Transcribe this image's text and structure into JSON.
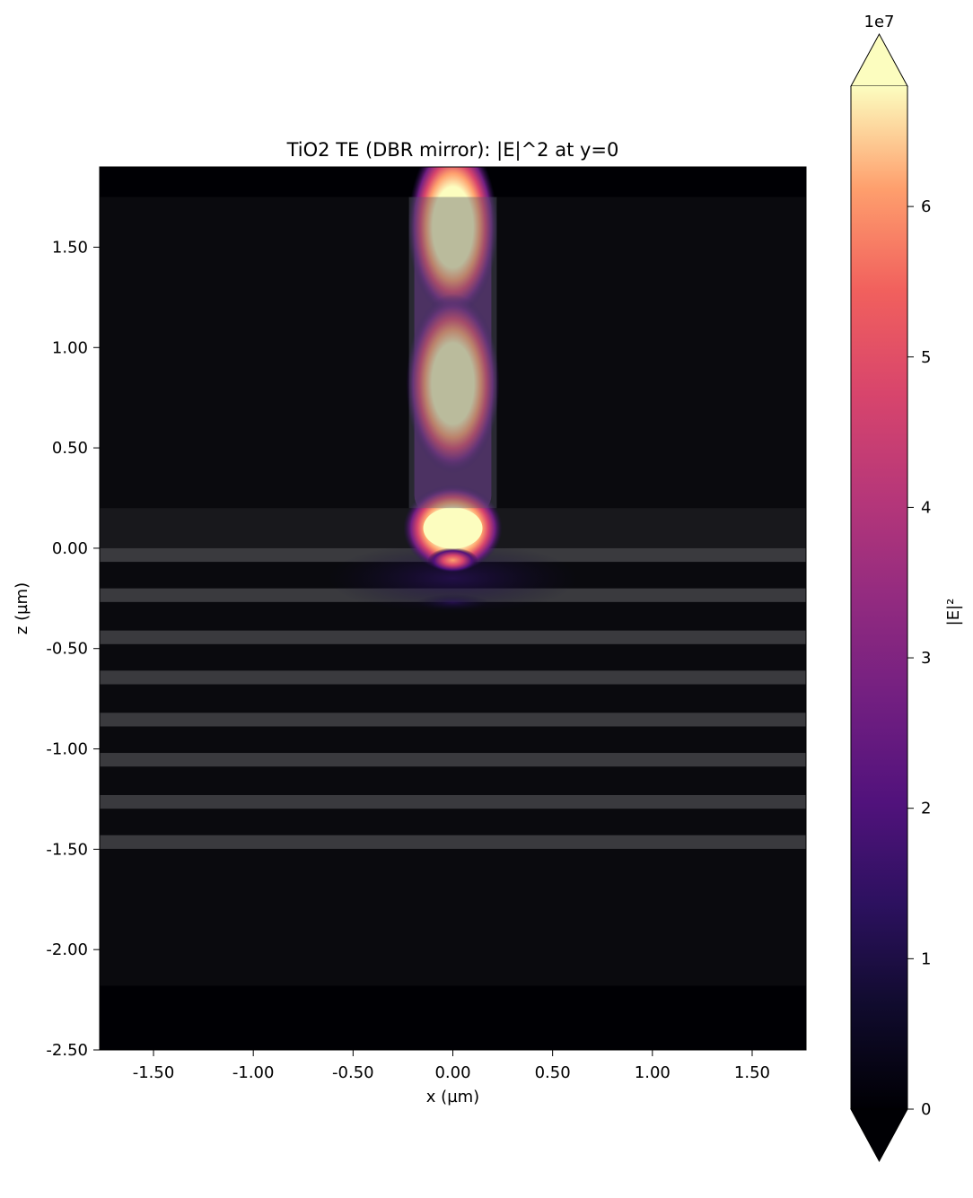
{
  "chart_data": {
    "type": "heatmap",
    "title": "TiO2 TE (DBR mirror): |E|^2 at y=0",
    "xlabel": "x (µm)",
    "ylabel": "z (µm)",
    "xlim": [
      -1.77,
      1.77
    ],
    "ylim": [
      -2.5,
      1.9
    ],
    "x_ticks": [
      "-1.50",
      "-1.00",
      "-0.50",
      "0.00",
      "0.50",
      "1.00",
      "1.50"
    ],
    "x_tick_values": [
      -1.5,
      -1.0,
      -0.5,
      0.0,
      0.5,
      1.0,
      1.5
    ],
    "y_ticks": [
      "1.50",
      "1.00",
      "0.50",
      "0.00",
      "-0.50",
      "-1.00",
      "-1.50",
      "-2.00",
      "-2.50"
    ],
    "y_tick_values": [
      1.5,
      1.0,
      0.5,
      0.0,
      -0.5,
      -1.0,
      -1.5,
      -2.0,
      -2.5
    ],
    "colorbar": {
      "label": "|E|²",
      "exponent_label": "1e7",
      "colormap": "magma",
      "range": [
        0,
        6.8
      ],
      "extend": "both",
      "ticks": [
        "0",
        "1",
        "2",
        "3",
        "4",
        "5",
        "6"
      ],
      "tick_values": [
        0,
        1,
        2,
        3,
        4,
        5,
        6
      ]
    },
    "structures": {
      "pillar": {
        "x": [
          -0.22,
          0.22
        ],
        "z": [
          0.2,
          1.75
        ]
      },
      "top_layer": {
        "z": [
          0.0,
          0.2
        ]
      },
      "dbr_layers_z_top": [
        0.0,
        -0.2,
        -0.41,
        -0.61,
        -0.82,
        -1.02,
        -1.23,
        -1.43
      ],
      "dbr_layer_thickness": 0.068,
      "background_region": {
        "z": [
          -2.18,
          1.75
        ]
      }
    },
    "field_hotspots": [
      {
        "x": 0.0,
        "z": 1.6,
        "value": 6.8
      },
      {
        "x": 0.0,
        "z": 0.82,
        "value": 6.8
      },
      {
        "x": 0.0,
        "z": 0.1,
        "value": 6.8
      },
      {
        "x": 0.0,
        "z": -0.06,
        "value": 4.5
      }
    ]
  },
  "colors": {
    "background": "#000004",
    "plot_region": "#0a0a0e",
    "dbr_layer": "#3a3a3e",
    "top_layer": "#18181c",
    "pillar": "#58586a"
  }
}
